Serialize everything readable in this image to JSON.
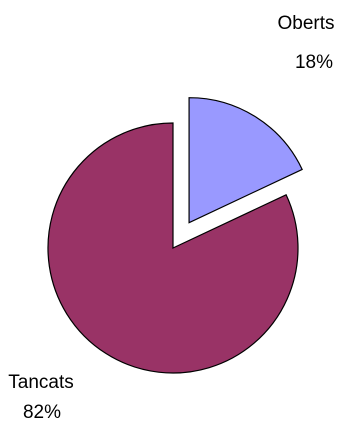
{
  "chart_data": {
    "type": "pie",
    "title": "",
    "slices": [
      {
        "label": "Oberts",
        "value": 18,
        "value_label": "18%",
        "color": "#9999ff",
        "exploded": true
      },
      {
        "label": "Tancats",
        "value": 82,
        "value_label": "82%",
        "color": "#993366",
        "exploded": false
      }
    ],
    "start_angle_deg": 0,
    "direction": "clockwise",
    "legend": "none"
  }
}
